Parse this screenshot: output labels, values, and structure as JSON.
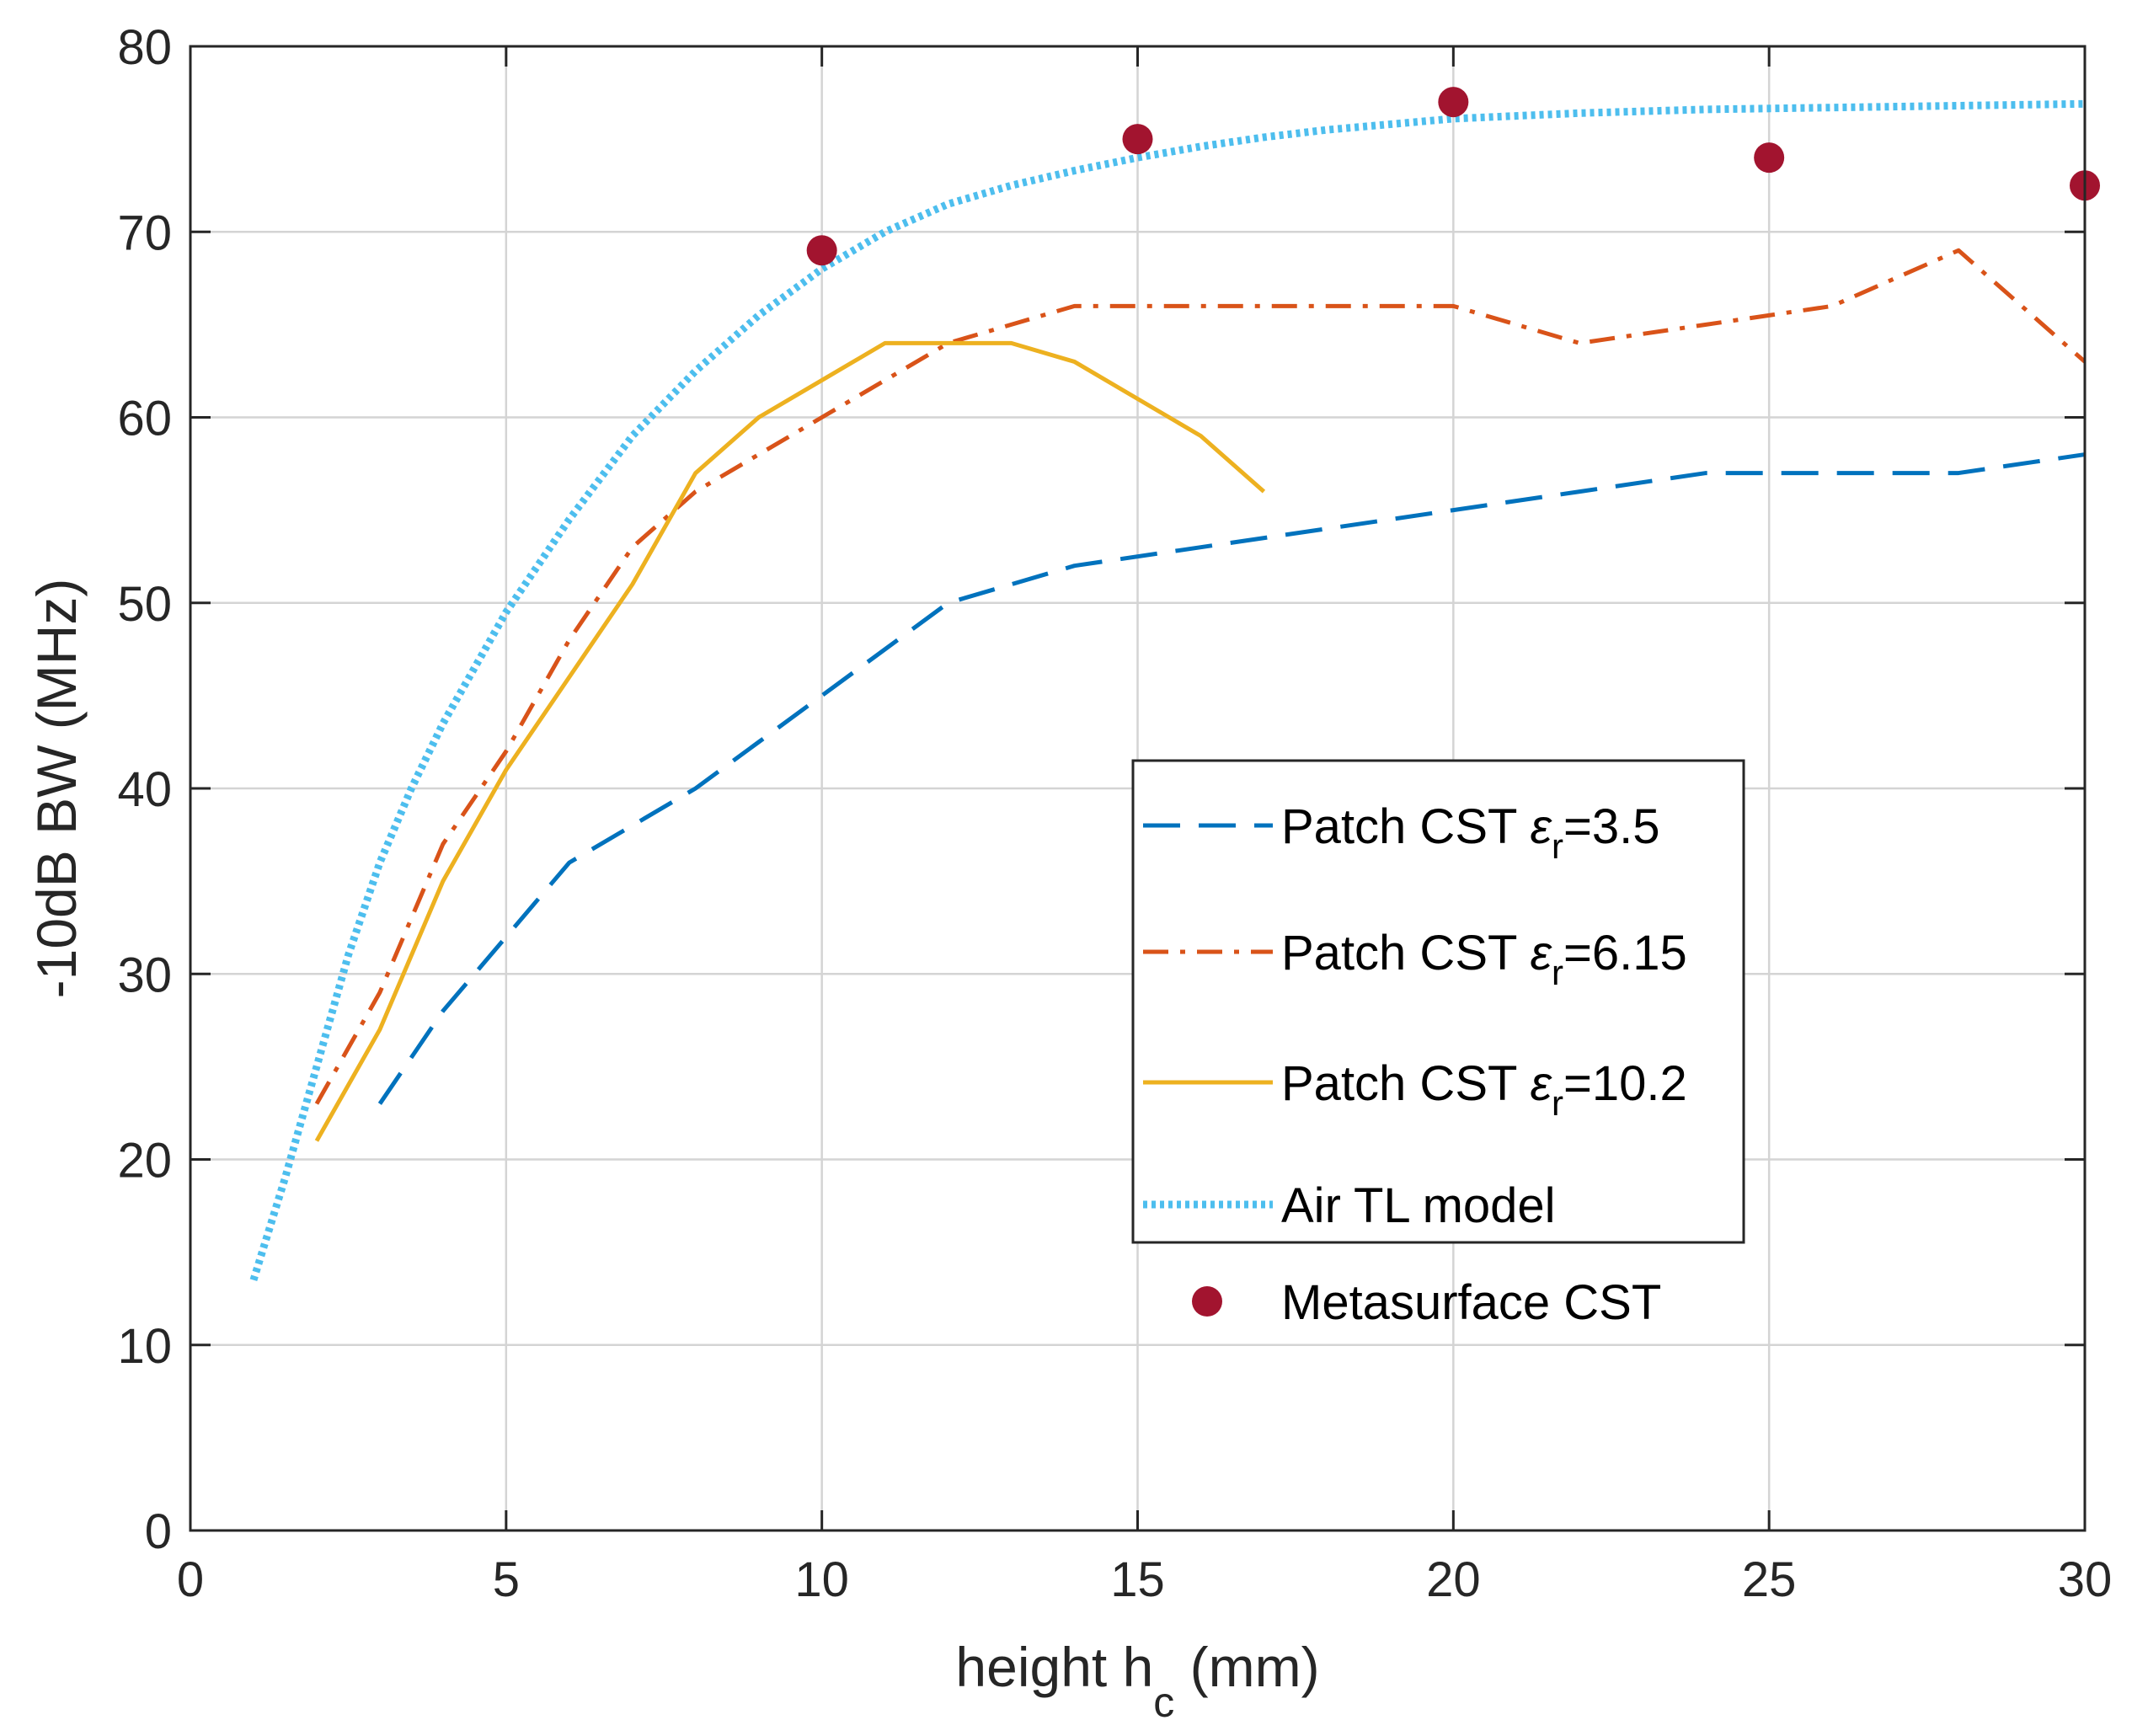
{
  "chart_data": {
    "type": "line",
    "title": "",
    "xlabel": "height h",
    "xlabel_sub": "c",
    "xlabel_unit": " (mm)",
    "ylabel": "-10dB BW (MHz)",
    "xlim": [
      0,
      30
    ],
    "ylim": [
      0,
      80
    ],
    "xticks": [
      0,
      5,
      10,
      15,
      20,
      25,
      30
    ],
    "yticks": [
      0,
      10,
      20,
      30,
      40,
      50,
      60,
      70,
      80
    ],
    "grid": true,
    "legend_position": "center-right",
    "series": [
      {
        "name": "Patch CST εr=3.5",
        "label_prefix": "Patch CST ",
        "label_symbol": "ε",
        "label_sub": "r",
        "label_suffix": "=3.5",
        "style": "dashed",
        "color": "#0072BD",
        "x": [
          3,
          4,
          5,
          6,
          7,
          8,
          9,
          10,
          11,
          12,
          14,
          16,
          18,
          20,
          22,
          24,
          26,
          28,
          30
        ],
        "y": [
          23,
          28,
          32,
          36,
          38,
          40,
          42.5,
          45,
          47.5,
          50,
          52,
          53,
          54,
          55,
          56,
          57,
          57,
          57,
          58
        ]
      },
      {
        "name": "Patch CST εr=6.15",
        "label_prefix": "Patch CST ",
        "label_symbol": "ε",
        "label_sub": "r",
        "label_suffix": "=6.15",
        "style": "dashdot",
        "color": "#D95319",
        "x": [
          2,
          3,
          4,
          5,
          6,
          7,
          8,
          9,
          10,
          11,
          12,
          14,
          16,
          18,
          20,
          22,
          24,
          26,
          28,
          30
        ],
        "y": [
          23,
          29,
          37,
          42,
          48,
          53,
          56,
          58,
          60,
          62,
          64,
          66,
          66,
          66,
          66,
          64,
          65,
          66,
          69,
          63
        ]
      },
      {
        "name": "Patch CST εr=10.2",
        "label_prefix": "Patch CST ",
        "label_symbol": "ε",
        "label_sub": "r",
        "label_suffix": "=10.2",
        "style": "solid",
        "color": "#EDB120",
        "x": [
          2,
          3,
          4,
          5,
          6,
          7,
          8,
          9,
          10,
          11,
          12,
          13,
          14,
          15,
          16,
          17
        ],
        "y": [
          21,
          27,
          35,
          41,
          46,
          51,
          57,
          60,
          62,
          64,
          64,
          64,
          63,
          61,
          59,
          56
        ]
      },
      {
        "name": "Air TL model",
        "label_prefix": "Air TL model",
        "label_symbol": "",
        "label_sub": "",
        "label_suffix": "",
        "style": "dotted",
        "color": "#4DBEEE",
        "x": [
          1,
          1.5,
          2,
          2.5,
          3,
          3.5,
          4,
          5,
          6,
          7,
          8,
          9,
          10,
          11,
          12,
          13,
          14,
          15,
          16,
          17,
          18,
          20,
          22,
          24,
          26,
          28,
          30
        ],
        "y": [
          13.5,
          19,
          25,
          31,
          36,
          40,
          43.5,
          49.5,
          54.5,
          59,
          62.5,
          65.5,
          68,
          70,
          71.5,
          72.5,
          73.3,
          74,
          74.6,
          75.1,
          75.5,
          76.1,
          76.4,
          76.6,
          76.7,
          76.8,
          76.9
        ]
      },
      {
        "name": "Metasurface CST",
        "label_prefix": "Metasurface CST",
        "label_symbol": "",
        "label_sub": "",
        "label_suffix": "",
        "style": "markers",
        "color": "#A2142F",
        "x": [
          10,
          15,
          20,
          25,
          30
        ],
        "y": [
          69,
          75,
          77,
          74,
          72.5
        ]
      }
    ]
  }
}
